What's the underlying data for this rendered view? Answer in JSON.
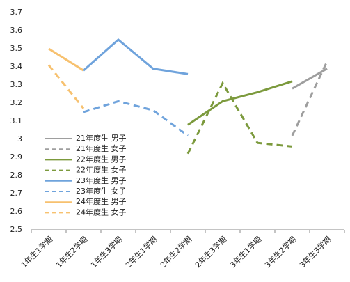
{
  "chart_data": {
    "type": "line",
    "categories": [
      "1年生1学期",
      "1年生2学期",
      "1年生3学期",
      "2年生1学期",
      "2年生2学期",
      "2年生3学期",
      "3年生1学期",
      "3年生2学期",
      "3年生3学期"
    ],
    "series": [
      {
        "name": "21年度生 男子",
        "color": "#9e9e9e",
        "style": "solid",
        "values": [
          null,
          null,
          null,
          null,
          null,
          null,
          null,
          3.28,
          3.39
        ]
      },
      {
        "name": "21年度生 女子",
        "color": "#9e9e9e",
        "style": "dashed",
        "values": [
          null,
          null,
          null,
          null,
          null,
          null,
          null,
          3.02,
          3.43
        ]
      },
      {
        "name": "22年度生 男子",
        "color": "#7c9a3d",
        "style": "solid",
        "values": [
          null,
          null,
          null,
          null,
          3.08,
          3.21,
          3.26,
          3.32,
          null
        ]
      },
      {
        "name": "22年度生 女子",
        "color": "#7c9a3d",
        "style": "dashed",
        "values": [
          null,
          null,
          null,
          null,
          2.92,
          3.31,
          2.98,
          2.96,
          null
        ]
      },
      {
        "name": "23年度生 男子",
        "color": "#6fa3dc",
        "style": "solid",
        "values": [
          null,
          3.38,
          3.55,
          3.39,
          3.36,
          null,
          null,
          null,
          null
        ]
      },
      {
        "name": "23年度生 女子",
        "color": "#6fa3dc",
        "style": "dashed",
        "values": [
          null,
          3.15,
          3.21,
          3.16,
          3.02,
          null,
          null,
          null,
          null
        ]
      },
      {
        "name": "24年度生 男子",
        "color": "#f7c16f",
        "style": "solid",
        "values": [
          3.5,
          3.38,
          null,
          null,
          null,
          null,
          null,
          null,
          null
        ]
      },
      {
        "name": "24年度生 女子",
        "color": "#f7c16f",
        "style": "dashed",
        "values": [
          3.41,
          3.17,
          null,
          null,
          null,
          null,
          null,
          null,
          null
        ]
      }
    ],
    "ylim": [
      2.5,
      3.7
    ],
    "yticks": [
      2.5,
      2.6,
      2.7,
      2.8,
      2.9,
      3,
      3.1,
      3.2,
      3.3,
      3.4,
      3.5,
      3.6,
      3.7
    ],
    "grid": false,
    "legend": "lower-left"
  }
}
